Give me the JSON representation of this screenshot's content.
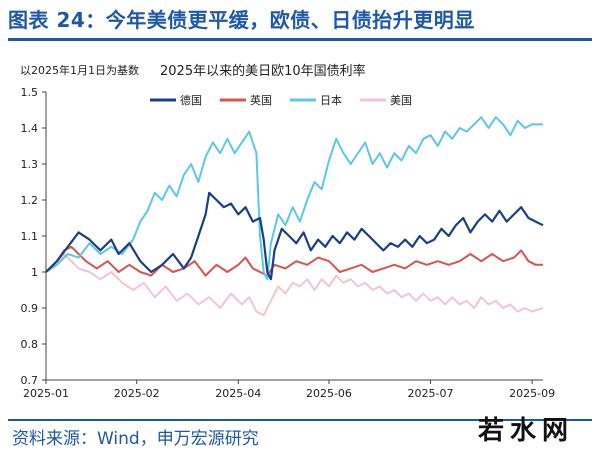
{
  "header": {
    "title": "图表 24：今年美债更平缓，欧债、日债抬升更明显"
  },
  "footer": {
    "source": "资料来源：Wind，申万宏源研究",
    "watermark": "若水网"
  },
  "colors": {
    "title_blue": "#1e58a6",
    "germany": "#1a3f85",
    "uk": "#d9534f",
    "japan": "#5bc8e6",
    "us": "#f3c6cf"
  },
  "chart_data": {
    "type": "line",
    "title": "2025年以来的美日欧10年国债利率",
    "ylabel": "以2025年1月1日为基数",
    "xlabel": "",
    "ylim": [
      0.7,
      1.5
    ],
    "yticks": [
      "0.7",
      "0.8",
      "0.9",
      "1",
      "1.1",
      "1.2",
      "1.3",
      "1.4",
      "1.5"
    ],
    "xticks": [
      "2025-01",
      "2025-02",
      "2025-04",
      "2025-06",
      "2025-07",
      "2025-09"
    ],
    "grid": false,
    "legend_position": "top-left",
    "series": [
      {
        "name": "德国",
        "color": "#1a3f85",
        "points": [
          [
            0,
            1.0
          ],
          [
            3,
            1.03
          ],
          [
            6,
            1.07
          ],
          [
            9,
            1.11
          ],
          [
            12,
            1.09
          ],
          [
            15,
            1.06
          ],
          [
            18,
            1.09
          ],
          [
            20,
            1.05
          ],
          [
            23,
            1.08
          ],
          [
            26,
            1.03
          ],
          [
            29,
            1.0
          ],
          [
            32,
            1.02
          ],
          [
            35,
            1.05
          ],
          [
            38,
            1.01
          ],
          [
            40,
            1.04
          ],
          [
            42,
            1.1
          ],
          [
            44,
            1.16
          ],
          [
            45,
            1.22
          ],
          [
            47,
            1.2
          ],
          [
            49,
            1.18
          ],
          [
            51,
            1.19
          ],
          [
            53,
            1.16
          ],
          [
            55,
            1.18
          ],
          [
            57,
            1.14
          ],
          [
            59,
            1.15
          ],
          [
            60,
            1.09
          ],
          [
            61,
            1.0
          ],
          [
            62,
            0.98
          ],
          [
            63,
            1.06
          ],
          [
            65,
            1.12
          ],
          [
            67,
            1.1
          ],
          [
            69,
            1.08
          ],
          [
            71,
            1.11
          ],
          [
            73,
            1.06
          ],
          [
            75,
            1.09
          ],
          [
            77,
            1.07
          ],
          [
            79,
            1.1
          ],
          [
            81,
            1.08
          ],
          [
            83,
            1.11
          ],
          [
            85,
            1.09
          ],
          [
            87,
            1.12
          ],
          [
            89,
            1.1
          ],
          [
            91,
            1.08
          ],
          [
            93,
            1.06
          ],
          [
            95,
            1.08
          ],
          [
            97,
            1.07
          ],
          [
            99,
            1.09
          ],
          [
            101,
            1.07
          ],
          [
            103,
            1.1
          ],
          [
            105,
            1.08
          ],
          [
            107,
            1.09
          ],
          [
            109,
            1.12
          ],
          [
            111,
            1.1
          ],
          [
            113,
            1.13
          ],
          [
            115,
            1.15
          ],
          [
            117,
            1.11
          ],
          [
            119,
            1.14
          ],
          [
            121,
            1.16
          ],
          [
            123,
            1.14
          ],
          [
            125,
            1.17
          ],
          [
            127,
            1.14
          ],
          [
            129,
            1.16
          ],
          [
            131,
            1.18
          ],
          [
            133,
            1.15
          ],
          [
            135,
            1.14
          ],
          [
            137,
            1.13
          ]
        ]
      },
      {
        "name": "英国",
        "color": "#d9534f",
        "points": [
          [
            0,
            1.0
          ],
          [
            3,
            1.03
          ],
          [
            5,
            1.06
          ],
          [
            7,
            1.07
          ],
          [
            9,
            1.05
          ],
          [
            11,
            1.03
          ],
          [
            14,
            1.01
          ],
          [
            17,
            1.03
          ],
          [
            20,
            1.0
          ],
          [
            23,
            1.02
          ],
          [
            26,
            1.0
          ],
          [
            29,
            0.99
          ],
          [
            32,
            1.02
          ],
          [
            35,
            1.0
          ],
          [
            38,
            1.01
          ],
          [
            41,
            1.03
          ],
          [
            44,
            0.99
          ],
          [
            47,
            1.02
          ],
          [
            50,
            1.0
          ],
          [
            53,
            1.02
          ],
          [
            55,
            1.04
          ],
          [
            57,
            1.01
          ],
          [
            59,
            1.0
          ],
          [
            61,
            0.99
          ],
          [
            63,
            1.02
          ],
          [
            66,
            1.01
          ],
          [
            69,
            1.03
          ],
          [
            72,
            1.02
          ],
          [
            75,
            1.04
          ],
          [
            78,
            1.03
          ],
          [
            81,
            1.0
          ],
          [
            84,
            1.01
          ],
          [
            87,
            1.02
          ],
          [
            90,
            1.0
          ],
          [
            93,
            1.01
          ],
          [
            96,
            1.02
          ],
          [
            99,
            1.01
          ],
          [
            102,
            1.03
          ],
          [
            105,
            1.02
          ],
          [
            108,
            1.03
          ],
          [
            111,
            1.02
          ],
          [
            114,
            1.03
          ],
          [
            117,
            1.05
          ],
          [
            120,
            1.03
          ],
          [
            123,
            1.05
          ],
          [
            126,
            1.03
          ],
          [
            129,
            1.04
          ],
          [
            131,
            1.06
          ],
          [
            133,
            1.03
          ],
          [
            135,
            1.02
          ],
          [
            137,
            1.02
          ]
        ]
      },
      {
        "name": "日本",
        "color": "#5bc8e6",
        "points": [
          [
            0,
            1.0
          ],
          [
            3,
            1.02
          ],
          [
            6,
            1.05
          ],
          [
            9,
            1.04
          ],
          [
            12,
            1.08
          ],
          [
            15,
            1.05
          ],
          [
            18,
            1.07
          ],
          [
            21,
            1.05
          ],
          [
            24,
            1.09
          ],
          [
            26,
            1.14
          ],
          [
            28,
            1.17
          ],
          [
            30,
            1.22
          ],
          [
            32,
            1.2
          ],
          [
            34,
            1.24
          ],
          [
            36,
            1.21
          ],
          [
            38,
            1.27
          ],
          [
            40,
            1.3
          ],
          [
            42,
            1.25
          ],
          [
            44,
            1.32
          ],
          [
            46,
            1.36
          ],
          [
            48,
            1.33
          ],
          [
            50,
            1.37
          ],
          [
            52,
            1.33
          ],
          [
            54,
            1.36
          ],
          [
            56,
            1.39
          ],
          [
            58,
            1.33
          ],
          [
            59,
            1.1
          ],
          [
            60,
            1.0
          ],
          [
            61,
            0.98
          ],
          [
            62,
            1.08
          ],
          [
            64,
            1.16
          ],
          [
            66,
            1.13
          ],
          [
            68,
            1.18
          ],
          [
            70,
            1.14
          ],
          [
            72,
            1.2
          ],
          [
            74,
            1.25
          ],
          [
            76,
            1.23
          ],
          [
            78,
            1.31
          ],
          [
            80,
            1.37
          ],
          [
            82,
            1.33
          ],
          [
            84,
            1.3
          ],
          [
            86,
            1.33
          ],
          [
            88,
            1.36
          ],
          [
            90,
            1.3
          ],
          [
            92,
            1.33
          ],
          [
            94,
            1.29
          ],
          [
            96,
            1.33
          ],
          [
            98,
            1.31
          ],
          [
            100,
            1.35
          ],
          [
            102,
            1.33
          ],
          [
            104,
            1.37
          ],
          [
            106,
            1.38
          ],
          [
            108,
            1.35
          ],
          [
            110,
            1.39
          ],
          [
            112,
            1.37
          ],
          [
            114,
            1.4
          ],
          [
            116,
            1.39
          ],
          [
            118,
            1.41
          ],
          [
            120,
            1.43
          ],
          [
            122,
            1.4
          ],
          [
            124,
            1.43
          ],
          [
            126,
            1.41
          ],
          [
            128,
            1.38
          ],
          [
            130,
            1.42
          ],
          [
            132,
            1.4
          ],
          [
            134,
            1.41
          ],
          [
            137,
            1.41
          ]
        ]
      },
      {
        "name": "美国",
        "color": "#f3c6cf",
        "points": [
          [
            0,
            1.0
          ],
          [
            3,
            1.02
          ],
          [
            5,
            1.05
          ],
          [
            7,
            1.03
          ],
          [
            9,
            1.01
          ],
          [
            12,
            1.0
          ],
          [
            15,
            0.98
          ],
          [
            18,
            1.0
          ],
          [
            21,
            0.97
          ],
          [
            24,
            0.95
          ],
          [
            27,
            0.97
          ],
          [
            30,
            0.93
          ],
          [
            33,
            0.96
          ],
          [
            36,
            0.92
          ],
          [
            39,
            0.94
          ],
          [
            42,
            0.91
          ],
          [
            45,
            0.93
          ],
          [
            48,
            0.9
          ],
          [
            51,
            0.94
          ],
          [
            54,
            0.91
          ],
          [
            56,
            0.93
          ],
          [
            58,
            0.89
          ],
          [
            60,
            0.88
          ],
          [
            62,
            0.92
          ],
          [
            64,
            0.96
          ],
          [
            66,
            0.94
          ],
          [
            68,
            0.97
          ],
          [
            70,
            0.96
          ],
          [
            72,
            0.98
          ],
          [
            74,
            0.95
          ],
          [
            76,
            0.98
          ],
          [
            78,
            0.96
          ],
          [
            80,
            0.99
          ],
          [
            82,
            0.97
          ],
          [
            84,
            0.98
          ],
          [
            86,
            0.96
          ],
          [
            88,
            0.97
          ],
          [
            90,
            0.95
          ],
          [
            92,
            0.96
          ],
          [
            94,
            0.94
          ],
          [
            96,
            0.95
          ],
          [
            98,
            0.93
          ],
          [
            100,
            0.94
          ],
          [
            102,
            0.92
          ],
          [
            104,
            0.94
          ],
          [
            106,
            0.92
          ],
          [
            108,
            0.93
          ],
          [
            110,
            0.91
          ],
          [
            112,
            0.93
          ],
          [
            114,
            0.91
          ],
          [
            116,
            0.92
          ],
          [
            118,
            0.9
          ],
          [
            120,
            0.93
          ],
          [
            122,
            0.91
          ],
          [
            124,
            0.92
          ],
          [
            126,
            0.9
          ],
          [
            128,
            0.91
          ],
          [
            130,
            0.89
          ],
          [
            132,
            0.9
          ],
          [
            134,
            0.89
          ],
          [
            137,
            0.9
          ]
        ]
      }
    ]
  }
}
